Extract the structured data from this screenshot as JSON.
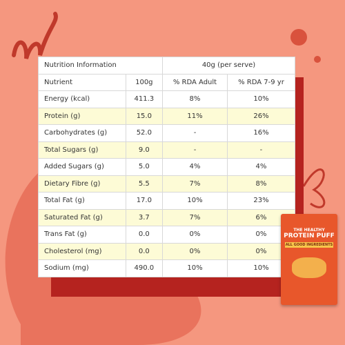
{
  "table": {
    "header": [
      "Nutrition Information",
      "40g (per serve)"
    ],
    "columns": [
      "Nutrient",
      "100g",
      "% RDA Adult",
      "% RDA 7-9 yr"
    ],
    "rows": [
      [
        "Energy (kcal)",
        "411.3",
        "8%",
        "10%"
      ],
      [
        "Protein (g)",
        "15.0",
        "11%",
        "26%"
      ],
      [
        "Carbohydrates (g)",
        "52.0",
        "-",
        "16%"
      ],
      [
        "Total Sugars (g)",
        "9.0",
        "-",
        "-"
      ],
      [
        "Added Sugars (g)",
        "5.0",
        "4%",
        "4%"
      ],
      [
        "Dietary Fibre (g)",
        "5.5",
        "7%",
        "8%"
      ],
      [
        "Total Fat (g)",
        "17.0",
        "10%",
        "23%"
      ],
      [
        "Saturated Fat (g)",
        "3.7",
        "7%",
        "6%"
      ],
      [
        "Trans Fat (g)",
        "0.0",
        "0%",
        "0%"
      ],
      [
        "Cholesterol (mg)",
        "0.0",
        "0%",
        "0%"
      ],
      [
        "Sodium (mg)",
        "490.0",
        "10%",
        "10%"
      ]
    ]
  },
  "package": {
    "line1": "THE HEALTHY",
    "line2": "PROTEIN PUFF",
    "line3": "ALL GOOD INGREDIENTS"
  }
}
